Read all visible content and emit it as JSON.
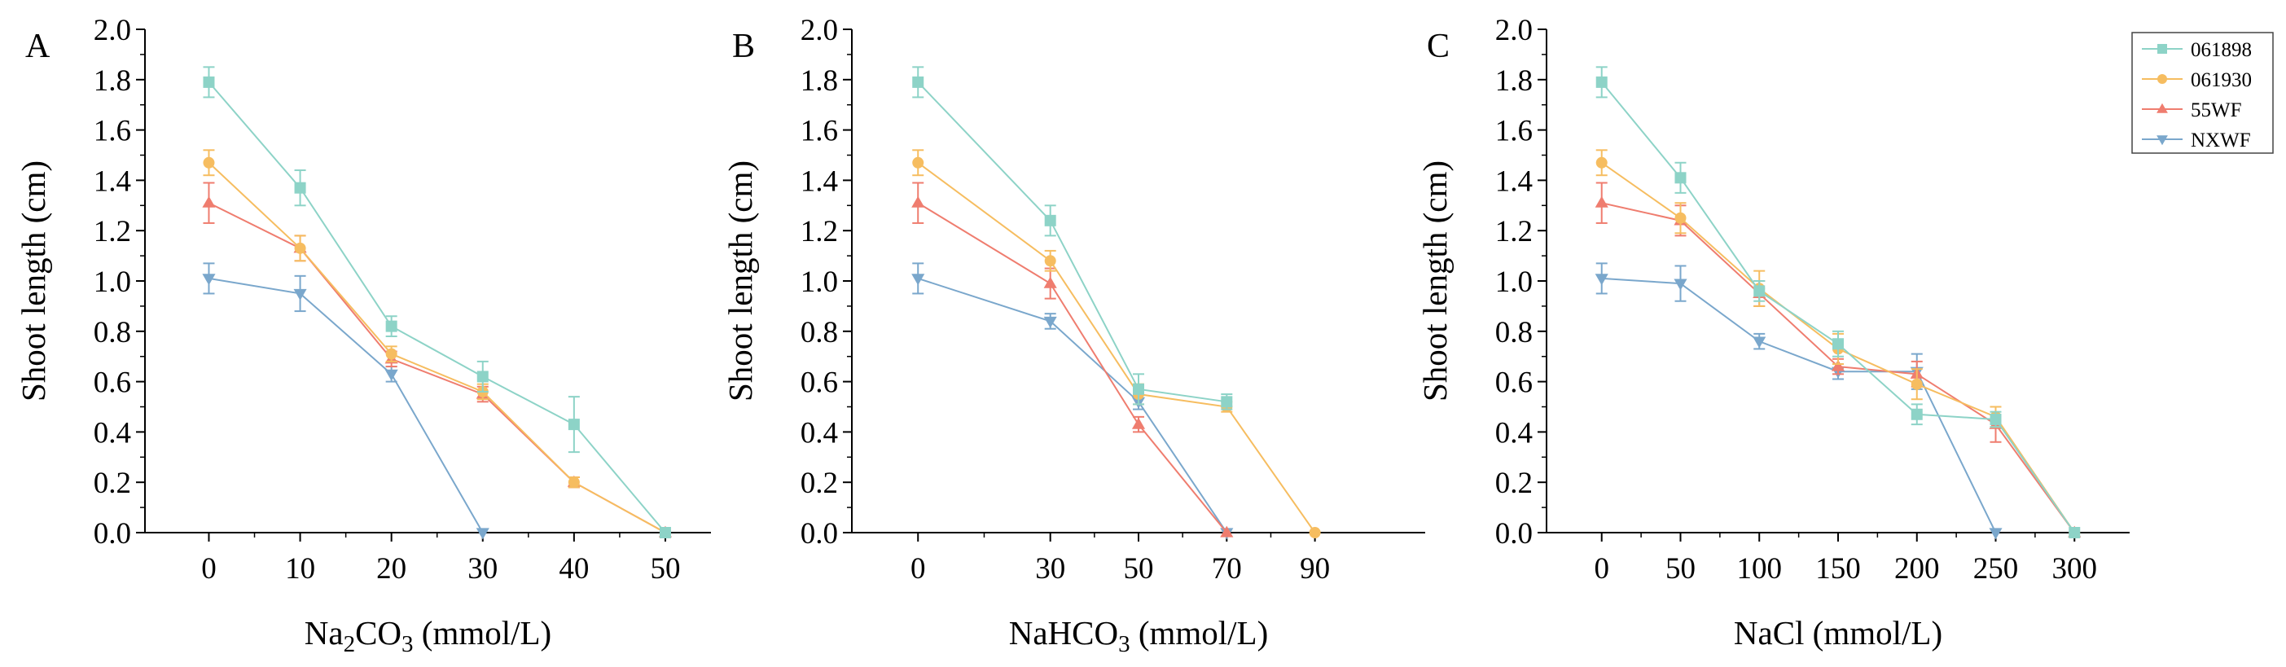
{
  "chart_data": [
    {
      "type": "line",
      "panel_letter": "A",
      "xlabel_parts": [
        "Na",
        "2",
        "CO",
        "3",
        " (mmol/L)"
      ],
      "ylabel": "Shoot length (cm)",
      "x": [
        0,
        10,
        20,
        30,
        40,
        50
      ],
      "xticks": [
        "0",
        "10",
        "20",
        "30",
        "40",
        "50"
      ],
      "xlim": [
        -7,
        55
      ],
      "ylim": [
        0,
        2.0
      ],
      "yticks": [
        "0.0",
        "0.2",
        "0.4",
        "0.6",
        "0.8",
        "1.0",
        "1.2",
        "1.4",
        "1.6",
        "1.8",
        "2.0"
      ],
      "series": [
        {
          "name": "061898",
          "values": [
            1.79,
            1.37,
            0.82,
            0.62,
            0.43,
            0.0
          ],
          "errors": [
            0.06,
            0.07,
            0.04,
            0.06,
            0.11,
            0
          ]
        },
        {
          "name": "061930",
          "values": [
            1.47,
            1.13,
            0.71,
            0.56,
            0.2,
            0.0
          ],
          "errors": [
            0.05,
            0.05,
            0.03,
            0.03,
            0.02,
            0
          ]
        },
        {
          "name": "55WF",
          "values": [
            1.31,
            1.13,
            0.69,
            0.55,
            0.2,
            0.0
          ],
          "errors": [
            0.08,
            0.05,
            0.03,
            0.03,
            0.02,
            0
          ]
        },
        {
          "name": "NXWF",
          "values": [
            1.01,
            0.95,
            0.63,
            0.0,
            null,
            null
          ],
          "errors": [
            0.06,
            0.07,
            0.03,
            0,
            null,
            null
          ]
        }
      ]
    },
    {
      "type": "line",
      "panel_letter": "B",
      "xlabel_parts": [
        "NaHCO",
        "3",
        " (mmol/L)"
      ],
      "ylabel": "Shoot length (cm)",
      "x": [
        0,
        30,
        50,
        70,
        90
      ],
      "xticks": [
        "0",
        "30",
        "50",
        "70",
        "90"
      ],
      "xlim": [
        -15,
        115
      ],
      "ylim": [
        0,
        2.0
      ],
      "yticks": [
        "0.0",
        "0.2",
        "0.4",
        "0.6",
        "0.8",
        "1.0",
        "1.2",
        "1.4",
        "1.6",
        "1.8",
        "2.0"
      ],
      "series": [
        {
          "name": "061898",
          "values": [
            1.79,
            1.24,
            0.57,
            0.52,
            null
          ],
          "errors": [
            0.06,
            0.06,
            0.06,
            0.03,
            null
          ]
        },
        {
          "name": "061930",
          "values": [
            1.47,
            1.08,
            0.55,
            0.5,
            0.0
          ],
          "errors": [
            0.05,
            0.04,
            0.04,
            0.02,
            0
          ]
        },
        {
          "name": "55WF",
          "values": [
            1.31,
            0.99,
            0.43,
            0.0,
            null
          ],
          "errors": [
            0.08,
            0.06,
            0.03,
            0,
            null
          ]
        },
        {
          "name": "NXWF",
          "values": [
            1.01,
            0.84,
            0.52,
            0.0,
            null
          ],
          "errors": [
            0.06,
            0.03,
            0.03,
            0,
            null
          ]
        }
      ]
    },
    {
      "type": "line",
      "panel_letter": "C",
      "xlabel_parts": [
        "NaCl (mmol/L)"
      ],
      "ylabel": "Shoot length (cm)",
      "x": [
        0,
        50,
        100,
        150,
        200,
        250,
        300
      ],
      "xticks": [
        "0",
        "50",
        "100",
        "150",
        "200",
        "250",
        "300"
      ],
      "xlim": [
        -35,
        335
      ],
      "ylim": [
        0,
        2.0
      ],
      "yticks": [
        "0.0",
        "0.2",
        "0.4",
        "0.6",
        "0.8",
        "1.0",
        "1.2",
        "1.4",
        "1.6",
        "1.8",
        "2.0"
      ],
      "series": [
        {
          "name": "061898",
          "values": [
            1.79,
            1.41,
            0.96,
            0.75,
            0.47,
            0.45,
            0.0
          ],
          "errors": [
            0.06,
            0.06,
            0.04,
            0.05,
            0.04,
            0.03,
            0
          ]
        },
        {
          "name": "061930",
          "values": [
            1.47,
            1.25,
            0.97,
            0.73,
            0.59,
            0.46,
            0.0
          ],
          "errors": [
            0.05,
            0.06,
            0.07,
            0.06,
            0.06,
            0.04,
            0
          ]
        },
        {
          "name": "55WF",
          "values": [
            1.31,
            1.24,
            0.95,
            0.66,
            0.63,
            0.43,
            0.0
          ],
          "errors": [
            0.08,
            0.06,
            0.05,
            0.03,
            0.05,
            0.07,
            0
          ]
        },
        {
          "name": "NXWF",
          "values": [
            1.01,
            0.99,
            0.76,
            0.64,
            0.64,
            0.0,
            null
          ],
          "errors": [
            0.06,
            0.07,
            0.03,
            0.03,
            0.07,
            0,
            null
          ]
        }
      ]
    }
  ],
  "legend": {
    "position": "top-right",
    "entries": [
      {
        "name": "061898",
        "color": "#8dd3c7",
        "marker": "square"
      },
      {
        "name": "061930",
        "color": "#f6bd60",
        "marker": "circle"
      },
      {
        "name": "55WF",
        "color": "#ef7d6f",
        "marker": "triangle-up"
      },
      {
        "name": "NXWF",
        "color": "#7aa7cc",
        "marker": "triangle-down"
      }
    ]
  }
}
